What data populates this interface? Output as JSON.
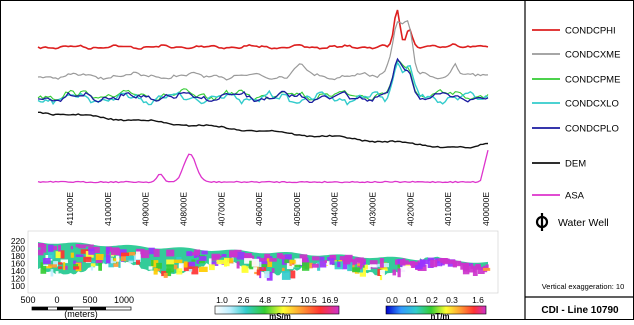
{
  "chart_data": {
    "type": "line",
    "title": "CDI - Line 10790",
    "note": "Vertical exaggeration: 10",
    "x_ticks": [
      "411000E",
      "410000E",
      "409000E",
      "408000E",
      "407000E",
      "406000E",
      "405000E",
      "404000E",
      "403000E",
      "402000E",
      "401000E",
      "400000E"
    ],
    "legend": [
      {
        "name": "CONDCPHI",
        "color": "#dd1f1f",
        "kind": "line"
      },
      {
        "name": "CONDCXME",
        "color": "#9a9a9a",
        "kind": "line"
      },
      {
        "name": "CONDCPME",
        "color": "#33cc33",
        "kind": "line"
      },
      {
        "name": "CONDCXLO",
        "color": "#33cccc",
        "kind": "line"
      },
      {
        "name": "CONDCPLO",
        "color": "#1a1aa0",
        "kind": "line"
      },
      {
        "name": "DEM",
        "color": "#111111",
        "kind": "line"
      },
      {
        "name": "ASA",
        "color": "#dd33cc",
        "kind": "line"
      },
      {
        "name": "Water Well",
        "color": "#000000",
        "kind": "symbol"
      }
    ],
    "section": {
      "y_ticks": [
        "220",
        "200",
        "180",
        "160",
        "140",
        "120",
        "100"
      ]
    },
    "scalebar": {
      "labels": [
        "500",
        "0",
        "500",
        "1000"
      ],
      "unit": "(meters)"
    },
    "colorbar_cond": {
      "ticks": [
        "1.0",
        "2.6",
        "4.8",
        "7.7",
        "10.5",
        "16.9"
      ],
      "unit": "mS/m"
    },
    "colorbar_mag": {
      "ticks": [
        "0.0",
        "0.1",
        "0.2",
        "0.3",
        "1.6"
      ],
      "unit": "nT/m"
    }
  }
}
